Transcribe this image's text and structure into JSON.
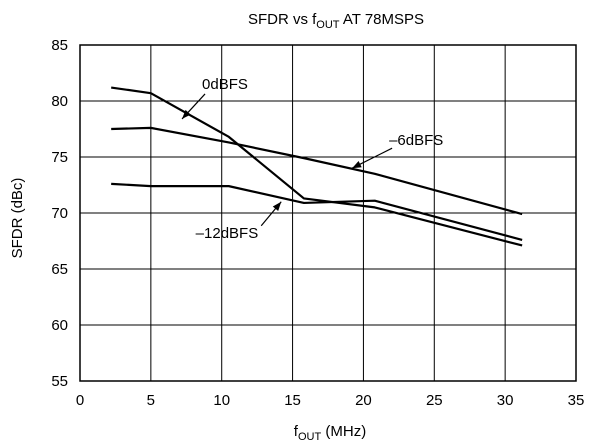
{
  "chart_data": {
    "type": "line",
    "title": {
      "main": "SFDR vs f",
      "sub": "OUT",
      "rest": " AT 78MSPS"
    },
    "xlabel": {
      "main": "f",
      "sub": "OUT",
      "rest": " (MHz)"
    },
    "ylabel": "SFDR (dBc)",
    "xlim": [
      0,
      35
    ],
    "ylim": [
      55,
      85
    ],
    "xticks": [
      0,
      5,
      10,
      15,
      20,
      25,
      30,
      35
    ],
    "yticks": [
      55,
      60,
      65,
      70,
      75,
      80,
      85
    ],
    "grid": true,
    "series": [
      {
        "name": "0dBFS",
        "x": [
          2.2,
          5.0,
          10.5,
          15.8,
          20.8,
          31.2
        ],
        "y": [
          81.2,
          80.7,
          76.8,
          71.3,
          70.5,
          67.1
        ]
      },
      {
        "name": "–6dBFS",
        "x": [
          2.2,
          5.0,
          10.5,
          15.8,
          20.8,
          31.2
        ],
        "y": [
          77.5,
          77.6,
          76.3,
          74.9,
          73.5,
          69.9
        ]
      },
      {
        "name": "–12dBFS",
        "x": [
          2.2,
          5.0,
          10.5,
          15.8,
          20.8,
          31.2
        ],
        "y": [
          72.6,
          72.4,
          72.4,
          70.9,
          71.1,
          67.6
        ]
      }
    ],
    "annotations": [
      {
        "series": 0,
        "label": "0dBFS",
        "at": [
          7.2,
          78.4
        ],
        "anchor": "start"
      },
      {
        "series": 1,
        "label": "–6dBFS",
        "at": [
          19.2,
          74.0
        ],
        "anchor": "start"
      },
      {
        "series": 2,
        "label": "–12dBFS",
        "at": [
          14.2,
          71.0
        ],
        "anchor": "end"
      }
    ]
  }
}
